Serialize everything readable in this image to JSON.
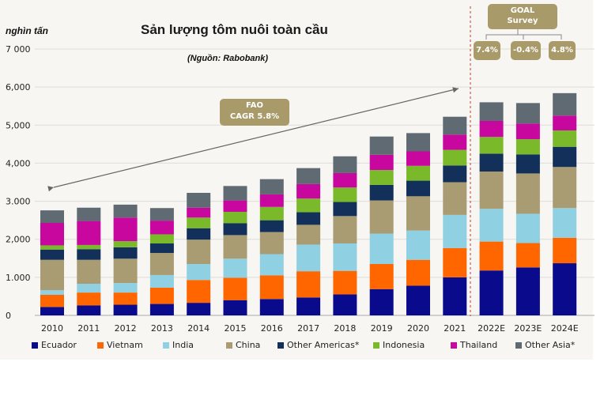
{
  "header": {
    "title": "Sản lượng tôm nuôi toàn cầu",
    "unit_label": "nghìn tấn",
    "source": "(Nguồn: Rabobank)"
  },
  "annotations": {
    "fao_line1": "FAO",
    "fao_line2": "CAGR 5.8%",
    "goal_line1": "GOAL",
    "goal_line2": "Survey",
    "goal_values": [
      "7.4%",
      "-0.4%",
      "4.8%"
    ]
  },
  "chart_data": {
    "type": "bar",
    "stacked": true,
    "title": "Sản lượng tôm nuôi toàn cầu",
    "subtitle": "(Nguồn: Rabobank)",
    "xlabel": "",
    "ylabel": "nghìn tấn",
    "ylim": [
      0,
      7000
    ],
    "yticks": [
      0,
      1000,
      2000,
      3000,
      4000,
      5000,
      6000,
      7000
    ],
    "ytick_labels": [
      "0",
      "1.000",
      "2,000",
      "3.000",
      "4,000",
      "5,000",
      "6,000",
      "7 000"
    ],
    "grid": true,
    "legend_position": "bottom",
    "categories": [
      "2010",
      "2011",
      "2012",
      "2013",
      "2014",
      "2015",
      "2016",
      "2017",
      "2018",
      "2019",
      "2020",
      "2021",
      "2022E",
      "2023E",
      "2024E"
    ],
    "series": [
      {
        "name": "Ecuador",
        "color": "#0a0a8c",
        "values": [
          220,
          260,
          280,
          300,
          330,
          400,
          430,
          470,
          550,
          690,
          780,
          1000,
          1180,
          1260,
          1370
        ]
      },
      {
        "name": "Vietnam",
        "color": "#ff6600",
        "values": [
          320,
          340,
          320,
          430,
          600,
          590,
          620,
          690,
          620,
          660,
          680,
          770,
          760,
          640,
          670
        ]
      },
      {
        "name": "India",
        "color": "#8fd0e3",
        "values": [
          120,
          230,
          250,
          330,
          420,
          500,
          560,
          700,
          720,
          800,
          770,
          870,
          860,
          770,
          780
        ]
      },
      {
        "name": "China",
        "color": "#aa9c72",
        "values": [
          800,
          630,
          640,
          580,
          640,
          620,
          580,
          520,
          720,
          870,
          900,
          860,
          980,
          1060,
          1080
        ]
      },
      {
        "name": "Other Americas*",
        "color": "#12305a",
        "values": [
          270,
          280,
          300,
          250,
          300,
          310,
          310,
          330,
          370,
          410,
          410,
          440,
          470,
          500,
          530
        ]
      },
      {
        "name": "Indonesia",
        "color": "#7ab929",
        "values": [
          110,
          110,
          160,
          240,
          280,
          300,
          350,
          360,
          380,
          390,
          390,
          410,
          440,
          400,
          430
        ]
      },
      {
        "name": "Thailand",
        "color": "#c8079e",
        "values": [
          590,
          630,
          620,
          360,
          260,
          300,
          330,
          380,
          380,
          400,
          380,
          400,
          420,
          410,
          390
        ]
      },
      {
        "name": "Other Asia*",
        "color": "#5f6a72",
        "values": [
          330,
          350,
          340,
          330,
          390,
          380,
          400,
          420,
          440,
          480,
          480,
          470,
          490,
          540,
          590
        ]
      }
    ],
    "annotations": [
      {
        "text": "FAO CAGR 5.8%",
        "type": "double-arrow",
        "from": "2010",
        "to": "2021"
      },
      {
        "text": "GOAL Survey",
        "values": {
          "2022E": "7.4%",
          "2023E": "-0.4%",
          "2024E": "4.8%"
        }
      }
    ]
  }
}
